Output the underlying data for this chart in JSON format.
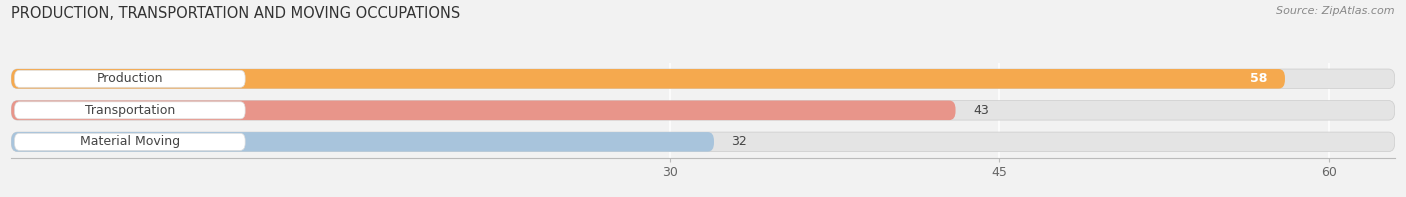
{
  "title": "PRODUCTION, TRANSPORTATION AND MOVING OCCUPATIONS",
  "source": "Source: ZipAtlas.com",
  "categories": [
    "Production",
    "Transportation",
    "Material Moving"
  ],
  "values": [
    58,
    43,
    32
  ],
  "bar_colors": [
    "#F5A94E",
    "#E8958A",
    "#A8C4DC"
  ],
  "xlim_max": 63,
  "xticks": [
    30,
    45,
    60
  ],
  "background_color": "#F2F2F2",
  "bar_track_color": "#E4E4E4",
  "title_fontsize": 10.5,
  "source_fontsize": 8,
  "label_fontsize": 9,
  "value_fontsize": 9
}
